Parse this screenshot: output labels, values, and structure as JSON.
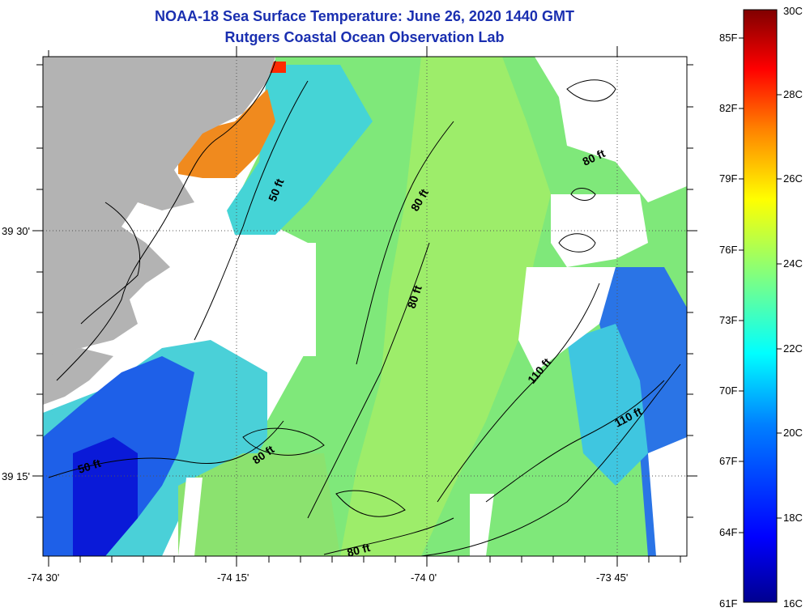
{
  "title": {
    "line1": "NOAA-18 Sea Surface Temperature:  June 26, 2020 1440 GMT",
    "line2": "Rutgers Coastal Ocean Observation Lab"
  },
  "axes": {
    "lat_labels": [
      "39 30'",
      "39 15'"
    ],
    "lon_labels": [
      "-74 30'",
      "-74 15'",
      "-74 0'",
      "-73 45'"
    ]
  },
  "contours": [
    "50 ft",
    "80 ft",
    "80 ft",
    "110 ft",
    "80 ft",
    "80 ft",
    "50 ft",
    "110 ft",
    "80 ft"
  ],
  "colorbar": {
    "fahrenheit": [
      "85F",
      "82F",
      "79F",
      "76F",
      "73F",
      "70F",
      "67F",
      "64F",
      "61F"
    ],
    "celsius": [
      "30C",
      "28C",
      "26C",
      "24C",
      "22C",
      "20C",
      "18C",
      "16C"
    ]
  },
  "colors": {
    "land": "#b3b3b3",
    "title": "#1a2fb0",
    "colormap": [
      "#00008f",
      "#0000ff",
      "#0080ff",
      "#00ffff",
      "#80ff80",
      "#ffff00",
      "#ff8000",
      "#ff0000",
      "#800000"
    ]
  }
}
